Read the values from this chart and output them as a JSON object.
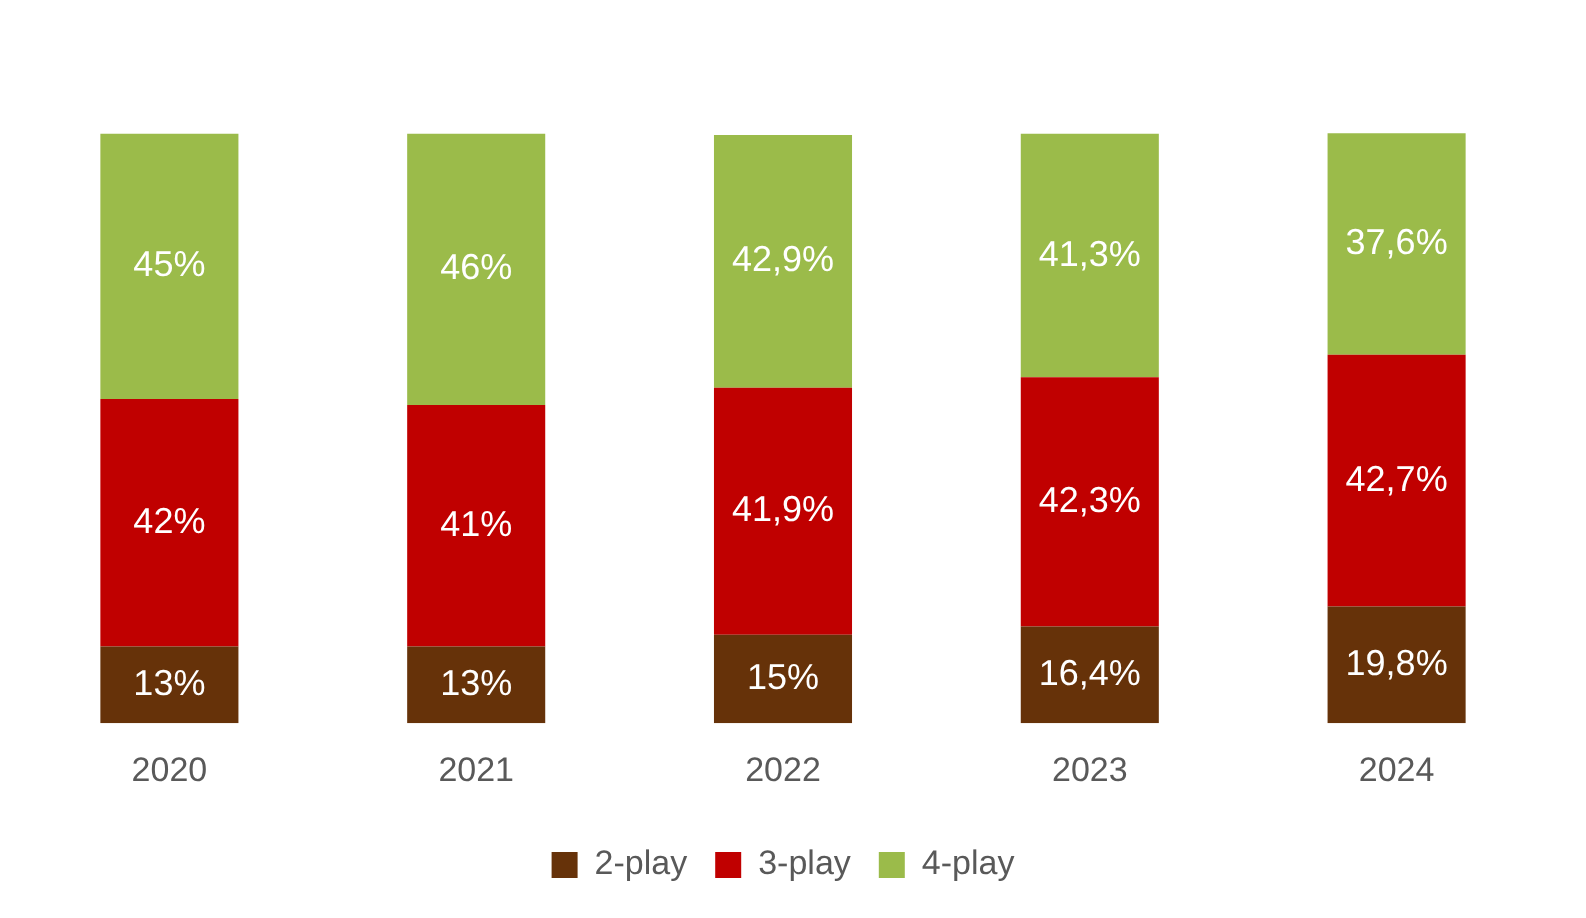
{
  "chart_data": {
    "type": "bar",
    "stacked": true,
    "categories": [
      "2020",
      "2021",
      "2022",
      "2023",
      "2024"
    ],
    "series": [
      {
        "name": "2-play",
        "color": "#663209",
        "values": [
          13,
          13,
          15,
          16.4,
          19.8
        ],
        "value_labels": [
          "13%",
          "13%",
          "15%",
          "16,4%",
          "19,8%"
        ]
      },
      {
        "name": "3-play",
        "color": "#c00000",
        "values": [
          42,
          41,
          41.9,
          42.3,
          42.7
        ],
        "value_labels": [
          "42%",
          "41%",
          "41,9%",
          "42,3%",
          "42,7%"
        ]
      },
      {
        "name": "4-play",
        "color": "#9bbb4a",
        "values": [
          45,
          46,
          42.9,
          41.3,
          37.6
        ],
        "value_labels": [
          "45%",
          "46%",
          "42,9%",
          "41,3%",
          "37,6%"
        ]
      }
    ],
    "legend": "bottom",
    "grid": false
  }
}
